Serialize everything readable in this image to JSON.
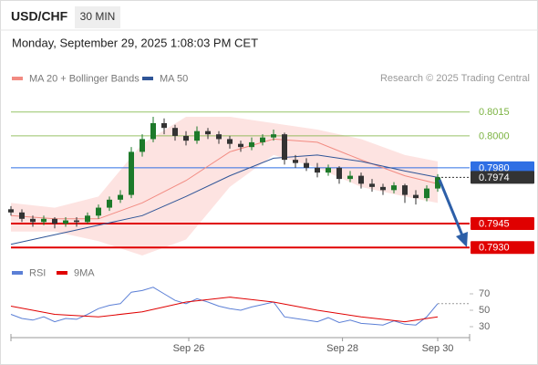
{
  "chart_data": {
    "type": "candlestick",
    "symbol": "USD/CHF",
    "interval": "30 MIN",
    "timestamp": "Monday, September 29, 2025 1:08:03 PM CET",
    "copyright": "Research © 2025 Trading Central",
    "ylim": [
      0.7925,
      0.8028
    ],
    "up_color": "#1d7a2a",
    "down_color": "#333333",
    "candles": [
      [
        0.7954,
        0.7956,
        0.795,
        0.7952
      ],
      [
        0.7952,
        0.7954,
        0.7946,
        0.7948
      ],
      [
        0.7948,
        0.795,
        0.7943,
        0.7946
      ],
      [
        0.7946,
        0.795,
        0.7944,
        0.7948
      ],
      [
        0.7948,
        0.7949,
        0.7942,
        0.7945
      ],
      [
        0.7945,
        0.7949,
        0.7943,
        0.7947
      ],
      [
        0.7947,
        0.7949,
        0.7943,
        0.7946
      ],
      [
        0.7946,
        0.7952,
        0.7945,
        0.795
      ],
      [
        0.795,
        0.7957,
        0.7948,
        0.7955
      ],
      [
        0.7955,
        0.7962,
        0.7953,
        0.796
      ],
      [
        0.796,
        0.7966,
        0.7958,
        0.7963
      ],
      [
        0.7963,
        0.7993,
        0.7961,
        0.799
      ],
      [
        0.799,
        0.8001,
        0.7987,
        0.7998
      ],
      [
        0.7998,
        0.8012,
        0.7996,
        0.8008
      ],
      [
        0.8008,
        0.8011,
        0.8001,
        0.8005
      ],
      [
        0.8005,
        0.8007,
        0.7997,
        0.8
      ],
      [
        0.8,
        0.8003,
        0.7994,
        0.7997
      ],
      [
        0.7997,
        0.8006,
        0.7995,
        0.8003
      ],
      [
        0.8003,
        0.8005,
        0.7998,
        0.8001
      ],
      [
        0.8001,
        0.8003,
        0.7995,
        0.7998
      ],
      [
        0.7998,
        0.8,
        0.7992,
        0.7995
      ],
      [
        0.7995,
        0.7997,
        0.799,
        0.7993
      ],
      [
        0.7993,
        0.7999,
        0.7991,
        0.7996
      ],
      [
        0.7996,
        0.8001,
        0.7994,
        0.7999
      ],
      [
        0.7999,
        0.8004,
        0.7997,
        0.8001
      ],
      [
        0.8001,
        0.8002,
        0.7982,
        0.7985
      ],
      [
        0.7985,
        0.7988,
        0.798,
        0.7983
      ],
      [
        0.7983,
        0.7986,
        0.7978,
        0.798
      ],
      [
        0.798,
        0.7983,
        0.7974,
        0.7977
      ],
      [
        0.7977,
        0.7982,
        0.7975,
        0.798
      ],
      [
        0.798,
        0.7981,
        0.797,
        0.7973
      ],
      [
        0.7973,
        0.7978,
        0.7971,
        0.7975
      ],
      [
        0.7975,
        0.7977,
        0.7967,
        0.797
      ],
      [
        0.797,
        0.7973,
        0.7965,
        0.7968
      ],
      [
        0.7968,
        0.797,
        0.7963,
        0.7966
      ],
      [
        0.7966,
        0.7971,
        0.7964,
        0.7969
      ],
      [
        0.7969,
        0.797,
        0.7958,
        0.7963
      ],
      [
        0.7963,
        0.7966,
        0.7957,
        0.7961
      ],
      [
        0.7961,
        0.7969,
        0.7959,
        0.7967
      ],
      [
        0.7967,
        0.7976,
        0.7965,
        0.7974
      ]
    ],
    "series": [
      {
        "name": "MA 20 + Bollinger Bands",
        "color": "#f28b82",
        "band_color": "#fde3e1",
        "x": [
          0,
          4,
          8,
          12,
          16,
          20,
          24,
          28,
          32,
          36,
          39
        ],
        "values": [
          0.795,
          0.7948,
          0.7948,
          0.7958,
          0.7972,
          0.799,
          0.7998,
          0.7996,
          0.7985,
          0.7975,
          0.797
        ],
        "upper": [
          0.7958,
          0.7955,
          0.7962,
          0.7995,
          0.8012,
          0.8012,
          0.8008,
          0.8004,
          0.7998,
          0.7988,
          0.7984
        ],
        "lower": [
          0.794,
          0.794,
          0.7934,
          0.7925,
          0.7935,
          0.7968,
          0.7988,
          0.798,
          0.7968,
          0.7962,
          0.7958
        ]
      },
      {
        "name": "MA 50",
        "color": "#2f5597",
        "x": [
          0,
          4,
          8,
          12,
          16,
          20,
          24,
          28,
          32,
          36,
          39
        ],
        "values": [
          0.7932,
          0.7938,
          0.7944,
          0.795,
          0.7962,
          0.7975,
          0.7986,
          0.7988,
          0.7984,
          0.7978,
          0.7974
        ]
      }
    ],
    "levels": [
      0.8015,
      {
        "value": 0.8,
        "label": "0.8000"
      },
      {
        "value": 0.798,
        "label": "0.7980"
      },
      0.7974,
      0.7945,
      {
        "value": 0.793,
        "label": "0.7930"
      }
    ],
    "level_colors": [
      "#7cb342",
      "#7cb342",
      "#2f6fe4",
      "#333333",
      "#e00000",
      "#e00000"
    ],
    "xticks": [
      {
        "value": 16.25,
        "label": "Sep 26"
      },
      {
        "value": 30.3,
        "label": "Sep 28"
      },
      {
        "value": 39,
        "label": "Sep 30"
      }
    ],
    "rsi": {
      "ylim": [
        10,
        90
      ],
      "yticks": [
        70,
        50,
        30
      ],
      "series": [
        {
          "name": "RSI",
          "color": "#5b7fd6",
          "values": [
            45,
            40,
            38,
            42,
            36,
            40,
            39,
            45,
            52,
            56,
            58,
            72,
            74,
            78,
            70,
            62,
            58,
            64,
            60,
            55,
            52,
            50,
            54,
            57,
            60,
            42,
            40,
            38,
            36,
            41,
            35,
            38,
            34,
            33,
            32,
            37,
            33,
            32,
            42,
            58
          ]
        },
        {
          "name": "9MA",
          "color": "#e00000",
          "x": [
            0,
            4,
            8,
            12,
            16,
            20,
            24,
            28,
            32,
            36,
            39
          ],
          "values": [
            55,
            45,
            42,
            48,
            60,
            66,
            60,
            50,
            42,
            36,
            42
          ]
        }
      ]
    }
  }
}
